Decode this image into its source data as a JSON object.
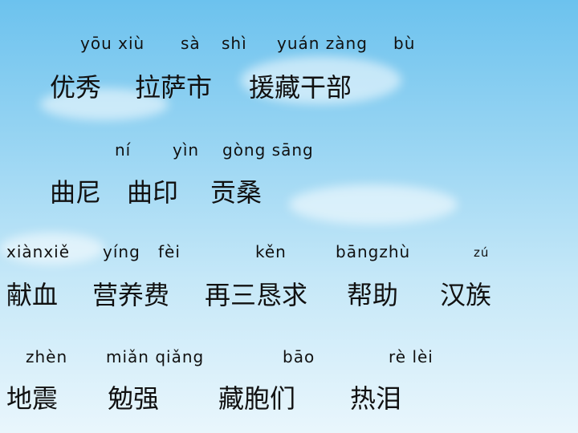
{
  "colors": {
    "sky_top": "#6cc2ee",
    "sky_bottom": "#e9f6fc",
    "text": "#111111"
  },
  "rows": [
    {
      "pinyin": [
        "yōu xiù",
        "sà",
        "shì",
        "yuán zàng",
        "bù"
      ],
      "words": [
        "优秀",
        "拉萨市",
        "援藏干部"
      ]
    },
    {
      "pinyin": [
        "ní",
        "yìn",
        "gòng sāng"
      ],
      "words": [
        "曲尼",
        "曲印",
        "贡桑"
      ]
    },
    {
      "pinyin": [
        "xiànxiě",
        "yíng",
        "fèi",
        "kěn",
        "bāngzhù",
        "zú"
      ],
      "words": [
        "献血",
        "营养费",
        "再三恳求",
        "帮助",
        "汉族"
      ]
    },
    {
      "pinyin": [
        "zhèn",
        "miǎn qiǎng",
        "bāo",
        "rè lèi"
      ],
      "words": [
        "地震",
        "勉强",
        "藏胞们",
        "热泪"
      ]
    }
  ]
}
